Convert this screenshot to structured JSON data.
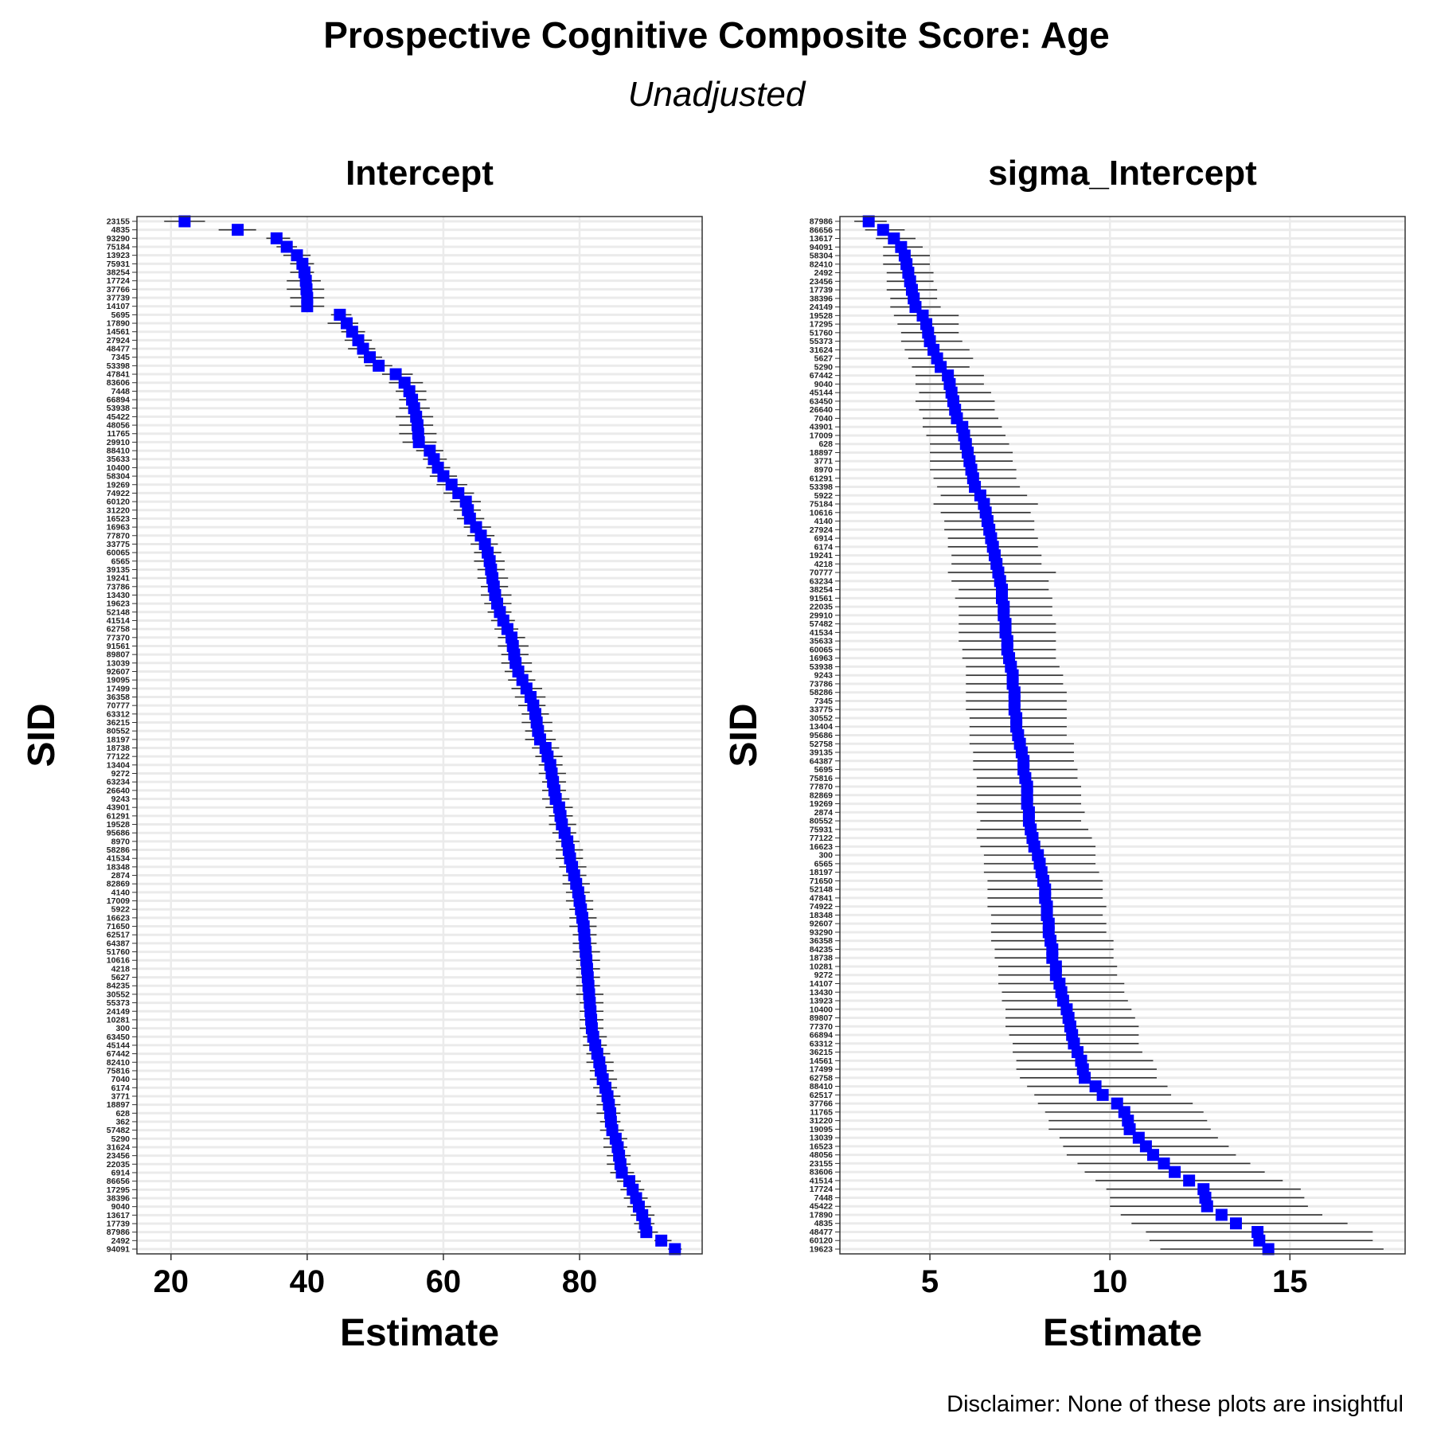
{
  "title": "Prospective Cognitive Composite Score: Age",
  "subtitle": "Unadjusted",
  "caption": "Disclaimer: None of these plots are insightful",
  "colors": {
    "point": "#0000ff",
    "errorbar": "#333333",
    "grid": "#ebebeb"
  },
  "chart_data": [
    {
      "type": "scatter",
      "title": "Intercept",
      "xlabel": "Estimate",
      "ylabel": "SID",
      "xlim": [
        15,
        98
      ],
      "xticks": [
        20,
        40,
        60,
        80
      ],
      "grid": true,
      "sids": [
        "23155",
        "4835",
        "93290",
        "75184",
        "13923",
        "75931",
        "38254",
        "17724",
        "37766",
        "37739",
        "14107",
        "5695",
        "17890",
        "14561",
        "27924",
        "48477",
        "7345",
        "53398",
        "47841",
        "83606",
        "7448",
        "66894",
        "53938",
        "45422",
        "48056",
        "11765",
        "29910",
        "88410",
        "35633",
        "10400",
        "58304",
        "19269",
        "74922",
        "60120",
        "31220",
        "16523",
        "16963",
        "77870",
        "33775",
        "60065",
        "6565",
        "39135",
        "19241",
        "73786",
        "13430",
        "19623",
        "52148",
        "41514",
        "62758",
        "77370",
        "91561",
        "89807",
        "13039",
        "92607",
        "19095",
        "17499",
        "36358",
        "70777",
        "63312",
        "36215",
        "80552",
        "18197",
        "18738",
        "77122",
        "13404",
        "9272",
        "63234",
        "26640",
        "9243",
        "43901",
        "61291",
        "19528",
        "95686",
        "8970",
        "58286",
        "41534",
        "18348",
        "2874",
        "82869",
        "4140",
        "17009",
        "5922",
        "16623",
        "71650",
        "62517",
        "64387",
        "51760",
        "10616",
        "4218",
        "5627",
        "84235",
        "30552",
        "55373",
        "24149",
        "10281",
        "300",
        "63450",
        "45144",
        "67442",
        "82410",
        "75816",
        "7040",
        "6174",
        "3771",
        "18897",
        "628",
        "362",
        "57482",
        "5290",
        "31624",
        "23456",
        "22035",
        "6914",
        "86656",
        "17295",
        "38396",
        "9040",
        "13617",
        "17739",
        "87986",
        "2492",
        "94091"
      ],
      "estimates": [
        22.0,
        29.8,
        35.5,
        37.0,
        38.5,
        39.3,
        39.6,
        39.8,
        39.9,
        40.0,
        40.0,
        44.8,
        45.8,
        46.6,
        47.5,
        48.2,
        49.2,
        50.5,
        53.0,
        54.3,
        55.0,
        55.4,
        55.7,
        56.0,
        56.2,
        56.3,
        56.4,
        58.0,
        58.6,
        59.2,
        60.0,
        61.2,
        62.2,
        63.3,
        63.6,
        63.9,
        64.8,
        65.5,
        66.1,
        66.5,
        66.8,
        67.0,
        67.2,
        67.4,
        67.6,
        67.9,
        68.3,
        68.8,
        69.4,
        70.0,
        70.2,
        70.4,
        70.6,
        71.0,
        71.6,
        72.2,
        72.8,
        73.2,
        73.5,
        73.7,
        73.9,
        74.2,
        75.0,
        75.3,
        75.7,
        75.9,
        76.1,
        76.3,
        76.5,
        77.0,
        77.2,
        77.4,
        77.8,
        78.2,
        78.4,
        78.6,
        78.9,
        79.2,
        79.5,
        79.8,
        80.0,
        80.2,
        80.4,
        80.6,
        80.7,
        80.8,
        80.9,
        81.0,
        81.1,
        81.2,
        81.3,
        81.4,
        81.5,
        81.6,
        81.7,
        81.8,
        82.0,
        82.3,
        82.6,
        82.9,
        83.1,
        83.4,
        83.8,
        84.1,
        84.3,
        84.5,
        84.6,
        84.8,
        85.3,
        85.6,
        85.8,
        86.0,
        86.2,
        87.3,
        87.8,
        88.3,
        88.7,
        89.2,
        89.6,
        89.8,
        92.0,
        94.0
      ],
      "lower": [
        19.0,
        27.0,
        34.0,
        35.5,
        36.5,
        37.5,
        37.5,
        37.0,
        37.0,
        37.5,
        37.5,
        43.5,
        43.0,
        45.0,
        45.5,
        46.0,
        47.5,
        48.5,
        51.0,
        52.0,
        53.0,
        53.5,
        53.5,
        53.0,
        53.5,
        53.5,
        54.0,
        56.0,
        57.0,
        57.5,
        58.0,
        59.0,
        60.0,
        61.0,
        61.5,
        62.0,
        63.0,
        63.5,
        64.0,
        64.5,
        64.5,
        65.0,
        65.0,
        65.5,
        65.5,
        66.0,
        66.5,
        67.0,
        67.5,
        68.0,
        68.0,
        68.5,
        68.5,
        69.0,
        69.5,
        70.0,
        70.5,
        71.0,
        71.5,
        71.5,
        72.0,
        72.0,
        73.0,
        73.5,
        74.0,
        74.0,
        74.5,
        74.5,
        74.5,
        75.0,
        75.5,
        75.5,
        76.0,
        76.5,
        76.5,
        76.5,
        77.0,
        77.5,
        77.5,
        78.0,
        78.0,
        78.5,
        78.5,
        78.5,
        79.0,
        79.0,
        79.0,
        79.5,
        79.5,
        79.5,
        79.5,
        79.5,
        80.0,
        80.0,
        80.0,
        80.0,
        80.5,
        80.5,
        81.0,
        81.0,
        81.5,
        81.5,
        82.0,
        82.5,
        82.5,
        82.5,
        83.0,
        83.0,
        83.5,
        83.5,
        84.0,
        84.0,
        84.5,
        85.5,
        86.0,
        86.5,
        87.0,
        87.5,
        88.0,
        88.5,
        91.0,
        93.0
      ],
      "upper": [
        25.0,
        32.5,
        37.5,
        38.5,
        40.5,
        41.0,
        41.0,
        42.0,
        42.5,
        42.5,
        42.5,
        46.5,
        47.5,
        48.5,
        49.5,
        50.0,
        51.0,
        52.5,
        55.5,
        57.0,
        57.5,
        57.5,
        58.0,
        58.5,
        58.5,
        59.0,
        59.0,
        60.0,
        60.5,
        61.0,
        62.0,
        63.5,
        64.5,
        65.5,
        65.5,
        66.0,
        67.0,
        67.5,
        68.0,
        68.5,
        69.0,
        69.0,
        69.5,
        69.5,
        70.0,
        70.0,
        70.0,
        70.5,
        71.0,
        72.0,
        72.5,
        72.5,
        73.0,
        73.0,
        73.5,
        74.5,
        75.0,
        75.0,
        75.5,
        76.0,
        76.0,
        76.5,
        77.0,
        77.5,
        77.5,
        78.0,
        78.0,
        78.0,
        78.5,
        79.0,
        79.0,
        79.5,
        79.5,
        80.0,
        80.5,
        80.5,
        81.0,
        81.0,
        81.5,
        81.5,
        82.0,
        82.0,
        82.5,
        82.5,
        82.5,
        82.5,
        83.0,
        83.0,
        83.0,
        83.0,
        83.0,
        83.5,
        83.5,
        83.5,
        83.5,
        83.5,
        84.0,
        84.0,
        84.5,
        85.0,
        85.0,
        85.5,
        85.5,
        86.0,
        86.0,
        86.0,
        86.0,
        86.5,
        87.0,
        87.0,
        87.5,
        87.5,
        88.0,
        89.0,
        89.5,
        90.0,
        90.5,
        91.0,
        91.0,
        91.5,
        93.5,
        95.0
      ]
    },
    {
      "type": "scatter",
      "title": "sigma_Intercept",
      "xlabel": "Estimate",
      "ylabel": "SID",
      "xlim": [
        2.5,
        18.2
      ],
      "xticks": [
        5,
        10,
        15
      ],
      "grid": true,
      "sids": [
        "87986",
        "86656",
        "13617",
        "94091",
        "58304",
        "82410",
        "2492",
        "23456",
        "17739",
        "38396",
        "24149",
        "19528",
        "17295",
        "51760",
        "55373",
        "31624",
        "5627",
        "5290",
        "67442",
        "9040",
        "45144",
        "63450",
        "26640",
        "7040",
        "43901",
        "17009",
        "628",
        "18897",
        "3771",
        "8970",
        "61291",
        "53398",
        "5922",
        "75184",
        "10616",
        "4140",
        "27924",
        "6914",
        "6174",
        "19241",
        "4218",
        "70777",
        "63234",
        "38254",
        "91561",
        "22035",
        "29910",
        "57482",
        "41534",
        "35633",
        "60065",
        "16963",
        "53938",
        "9243",
        "73786",
        "58286",
        "7345",
        "33775",
        "30552",
        "13404",
        "95686",
        "52758",
        "39135",
        "64387",
        "5695",
        "75816",
        "77870",
        "82869",
        "19269",
        "2874",
        "80552",
        "75931",
        "77122",
        "16623",
        "300",
        "6565",
        "18197",
        "71650",
        "52148",
        "47841",
        "74922",
        "18348",
        "92607",
        "93290",
        "36358",
        "84235",
        "18738",
        "10281",
        "9272",
        "14107",
        "13430",
        "13923",
        "10400",
        "89807",
        "77370",
        "66894",
        "63312",
        "36215",
        "14561",
        "17499",
        "62758",
        "88410",
        "62517",
        "37766",
        "11765",
        "31220",
        "19095",
        "13039",
        "16523",
        "48056",
        "23155",
        "83606",
        "41514",
        "17724",
        "7448",
        "45422",
        "17890",
        "4835",
        "48477",
        "60120",
        "19623"
      ],
      "estimates": [
        3.3,
        3.7,
        4.0,
        4.2,
        4.3,
        4.35,
        4.4,
        4.45,
        4.5,
        4.55,
        4.6,
        4.8,
        4.9,
        4.95,
        5.0,
        5.1,
        5.2,
        5.3,
        5.5,
        5.55,
        5.6,
        5.65,
        5.7,
        5.75,
        5.9,
        5.95,
        6.0,
        6.05,
        6.1,
        6.15,
        6.2,
        6.25,
        6.4,
        6.5,
        6.55,
        6.6,
        6.65,
        6.7,
        6.75,
        6.8,
        6.85,
        6.9,
        6.95,
        7.0,
        7.0,
        7.05,
        7.05,
        7.1,
        7.1,
        7.15,
        7.15,
        7.2,
        7.25,
        7.3,
        7.3,
        7.35,
        7.35,
        7.35,
        7.4,
        7.4,
        7.45,
        7.5,
        7.55,
        7.6,
        7.6,
        7.65,
        7.7,
        7.7,
        7.7,
        7.75,
        7.75,
        7.8,
        7.85,
        7.9,
        8.0,
        8.05,
        8.1,
        8.15,
        8.2,
        8.2,
        8.25,
        8.25,
        8.3,
        8.3,
        8.35,
        8.4,
        8.4,
        8.5,
        8.5,
        8.6,
        8.65,
        8.7,
        8.8,
        8.85,
        8.9,
        8.95,
        9.0,
        9.1,
        9.2,
        9.25,
        9.3,
        9.6,
        9.8,
        10.2,
        10.4,
        10.5,
        10.55,
        10.8,
        11.0,
        11.2,
        11.5,
        11.8,
        12.2,
        12.6,
        12.65,
        12.7,
        13.1,
        13.5,
        14.1,
        14.15,
        14.4
      ],
      "lower": [
        2.9,
        3.2,
        3.5,
        3.7,
        3.7,
        3.7,
        3.8,
        3.8,
        3.8,
        3.9,
        3.9,
        4.0,
        4.1,
        4.2,
        4.2,
        4.3,
        4.4,
        4.5,
        4.6,
        4.6,
        4.7,
        4.6,
        4.7,
        4.8,
        4.8,
        4.9,
        5.0,
        5.0,
        5.0,
        5.0,
        5.1,
        5.2,
        5.3,
        5.1,
        5.3,
        5.4,
        5.4,
        5.5,
        5.5,
        5.6,
        5.6,
        5.5,
        5.6,
        5.8,
        5.7,
        5.8,
        5.8,
        5.8,
        5.8,
        5.8,
        5.9,
        5.9,
        6.0,
        6.0,
        6.0,
        6.0,
        6.0,
        6.0,
        6.1,
        6.1,
        6.1,
        6.1,
        6.2,
        6.2,
        6.2,
        6.3,
        6.3,
        6.3,
        6.3,
        6.3,
        6.4,
        6.3,
        6.3,
        6.4,
        6.5,
        6.5,
        6.5,
        6.6,
        6.6,
        6.6,
        6.6,
        6.7,
        6.7,
        6.7,
        6.7,
        6.8,
        6.8,
        6.9,
        6.9,
        6.9,
        7.0,
        7.0,
        7.1,
        7.1,
        7.1,
        7.2,
        7.3,
        7.3,
        7.4,
        7.4,
        7.5,
        7.7,
        7.9,
        8.0,
        8.2,
        8.3,
        8.3,
        8.6,
        8.7,
        8.8,
        9.1,
        9.3,
        9.6,
        9.9,
        10.0,
        10.0,
        10.3,
        10.6,
        11.0,
        11.1,
        11.4
      ],
      "upper": [
        3.8,
        4.3,
        4.6,
        4.8,
        5.0,
        5.0,
        5.1,
        5.1,
        5.2,
        5.2,
        5.3,
        5.8,
        5.8,
        5.8,
        5.9,
        6.1,
        6.2,
        6.1,
        6.5,
        6.5,
        6.7,
        6.8,
        6.8,
        6.9,
        7.0,
        7.1,
        7.2,
        7.3,
        7.3,
        7.4,
        7.4,
        7.5,
        7.7,
        8.0,
        7.8,
        7.9,
        7.9,
        8.0,
        8.0,
        8.1,
        8.1,
        8.5,
        8.3,
        8.3,
        8.4,
        8.4,
        8.4,
        8.5,
        8.5,
        8.5,
        8.5,
        8.5,
        8.6,
        8.7,
        8.7,
        8.8,
        8.8,
        8.8,
        8.8,
        8.8,
        8.8,
        9.0,
        9.0,
        9.0,
        9.1,
        9.1,
        9.2,
        9.2,
        9.2,
        9.3,
        9.2,
        9.4,
        9.5,
        9.6,
        9.6,
        9.6,
        9.7,
        9.8,
        9.8,
        9.8,
        9.9,
        9.8,
        9.9,
        9.9,
        10.1,
        10.1,
        10.1,
        10.2,
        10.2,
        10.4,
        10.4,
        10.5,
        10.6,
        10.7,
        10.8,
        10.8,
        10.8,
        10.9,
        11.2,
        11.3,
        11.3,
        11.6,
        11.7,
        12.3,
        12.6,
        12.7,
        12.8,
        13.0,
        13.3,
        13.5,
        13.9,
        14.3,
        14.8,
        15.3,
        15.4,
        15.5,
        15.9,
        16.6,
        17.3,
        17.3,
        17.6
      ]
    }
  ]
}
